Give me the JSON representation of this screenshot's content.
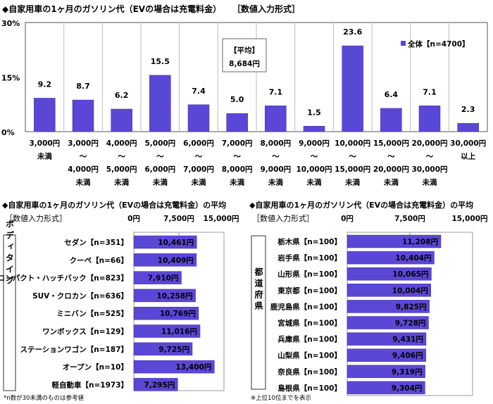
{
  "colors": {
    "bar": "#5b47d6",
    "bar_edge": "#3a2aa8",
    "grid": "#bdbdbd"
  },
  "top": {
    "title": "◆自家用車の1ヶ月のガソリン代（EVの場合は充電料金）",
    "format_note": "［数値入力形式］",
    "avg_box": {
      "label": "【平均】",
      "value": "8,684円"
    },
    "legend": "全体【n=4700】"
  },
  "chart_data": [
    {
      "type": "bar",
      "ylim": [
        0,
        30
      ],
      "yticks": [
        "0%",
        "15%",
        "30%"
      ],
      "grid": true,
      "legend_position": "top-right",
      "series": [
        {
          "name": "全体【n=4700】",
          "values": [
            9.2,
            8.7,
            6.2,
            15.5,
            7.4,
            5.0,
            7.1,
            1.5,
            23.6,
            6.4,
            7.1,
            2.3
          ]
        }
      ],
      "value_labels": [
        "9.2",
        "8.7",
        "6.2",
        "15.5",
        "7.4",
        "5.0",
        "7.1",
        "1.5",
        "23.6",
        "6.4",
        "7.1",
        "2.3"
      ],
      "categories": [
        [
          "3,000円",
          "未満"
        ],
        [
          "3,000円",
          "～",
          "4,000円",
          "未満"
        ],
        [
          "4,000円",
          "～",
          "5,000円",
          "未満"
        ],
        [
          "5,000円",
          "～",
          "6,000円",
          "未満"
        ],
        [
          "6,000円",
          "～",
          "7,000円",
          "未満"
        ],
        [
          "7,000円",
          "～",
          "8,000円",
          "未満"
        ],
        [
          "8,000円",
          "～",
          "9,000円",
          "未満"
        ],
        [
          "9,000円",
          "～",
          "10,000円",
          "未満"
        ],
        [
          "10,000円",
          "～",
          "15,000円",
          "未満"
        ],
        [
          "15,000円",
          "～",
          "20,000円",
          "未満"
        ],
        [
          "20,000円",
          "～",
          "30,000円",
          "未満"
        ],
        [
          "30,000円",
          "以上"
        ]
      ]
    },
    {
      "type": "bar",
      "orientation": "horizontal",
      "title": "◆自家用車の1ヶ月のガソリン代（EVの場合は充電料金）の平均",
      "format_note": "［数値入力形式］",
      "group_label": "ボディタイプ",
      "xlim": [
        0,
        15000
      ],
      "xticks": [
        "0円",
        "7,500円",
        "15,000円"
      ],
      "categories": [
        "セダン【n=351】",
        "クーペ【n=66】",
        "コンパクト・ハッチバック【n=823】",
        "SUV・クロカン【n=636】",
        "ミニバン【n=525】",
        "ワンボックス【n=129】",
        "ステーションワゴン【n=187】",
        "オープン【n=10】",
        "軽自動車【n=1973】"
      ],
      "values": [
        10461,
        10409,
        7910,
        10258,
        10769,
        11016,
        9725,
        13400,
        7295
      ],
      "value_labels": [
        "10,461円",
        "10,409円",
        "7,910円",
        "10,258円",
        "10,769円",
        "11,016円",
        "9,725円",
        "13,400円",
        "7,295円"
      ],
      "footnote": "*n数が30未満のものは参考値"
    },
    {
      "type": "bar",
      "orientation": "horizontal",
      "title": "◆自家用車の1ヶ月のガソリン代（EVの場合は充電料金）の平均",
      "format_note": "［数値入力形式］",
      "group_label": "都道府県",
      "xlim": [
        0,
        15000
      ],
      "xticks": [
        "0円",
        "7,500円",
        "15,000円"
      ],
      "categories": [
        "栃木県【n=100】",
        "岩手県【n=100】",
        "山形県【n=100】",
        "東京都【n=100】",
        "鹿児島県【n=100】",
        "宮城県【n=100】",
        "兵庫県【n=100】",
        "山梨県【n=100】",
        "奈良県【n=100】",
        "島根県【n=100】"
      ],
      "values": [
        11208,
        10404,
        10065,
        10004,
        9825,
        9728,
        9431,
        9406,
        9319,
        9304
      ],
      "value_labels": [
        "11,208円",
        "10,404円",
        "10,065円",
        "10,004円",
        "9,825円",
        "9,728円",
        "9,431円",
        "9,406円",
        "9,319円",
        "9,304円"
      ],
      "footnote": "※上位10位までを表示"
    }
  ]
}
